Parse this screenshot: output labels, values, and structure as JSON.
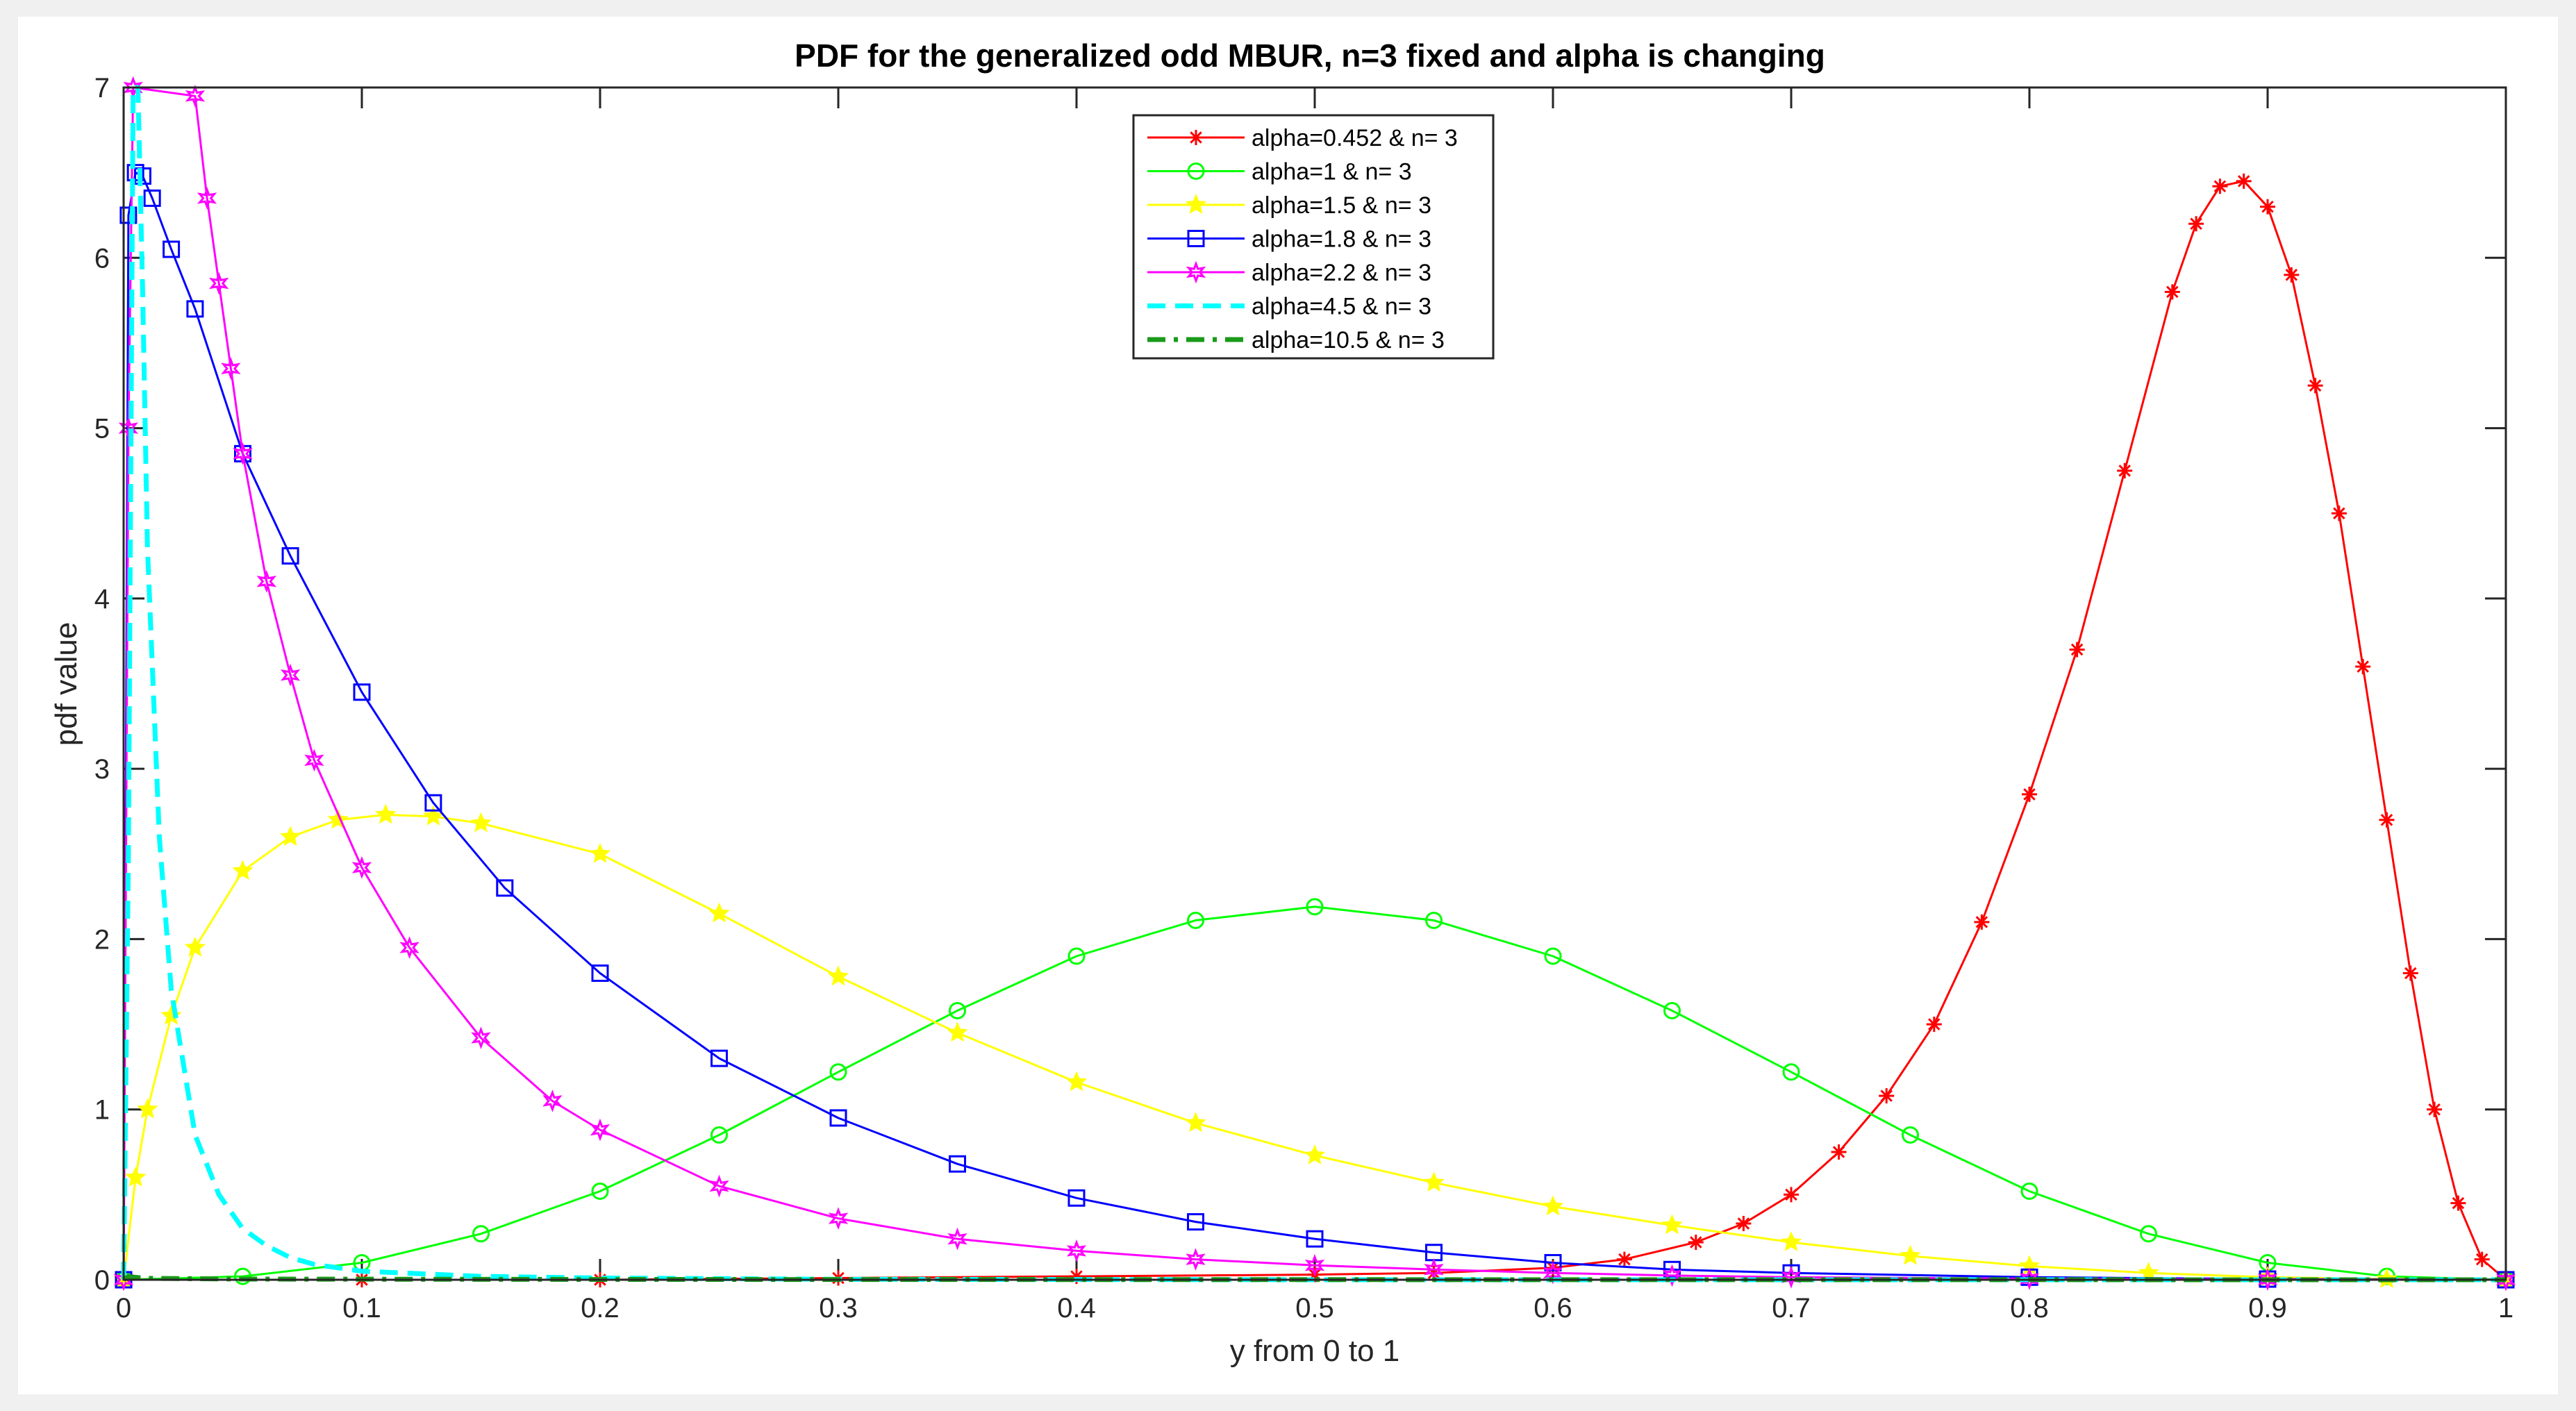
{
  "chart_data": {
    "type": "line",
    "title": "PDF for the generalized odd MBUR, n=3 fixed and alpha is changing",
    "xlabel": "y from 0 to 1",
    "ylabel": "pdf value",
    "xlim": [
      0,
      1
    ],
    "ylim": [
      0,
      7
    ],
    "xticks": [
      0,
      0.1,
      0.2,
      0.3,
      0.4,
      0.5,
      0.6,
      0.7,
      0.8,
      0.9,
      1
    ],
    "xtick_labels": [
      "0",
      "0.1",
      "0.2",
      "0.3",
      "0.4",
      "0.5",
      "0.6",
      "0.7",
      "0.8",
      "0.9",
      "1"
    ],
    "yticks": [
      0,
      1,
      2,
      3,
      4,
      5,
      6,
      7
    ],
    "ytick_labels": [
      "0",
      "1",
      "2",
      "3",
      "4",
      "5",
      "6",
      "7"
    ],
    "grid": false,
    "legend_position": "top-center",
    "series": [
      {
        "name": "alpha=0.452 & n= 3",
        "color": "#ff0000",
        "marker": "asterisk",
        "line_style": "solid",
        "x": [
          0.0,
          0.1,
          0.2,
          0.3,
          0.4,
          0.5,
          0.55,
          0.6,
          0.63,
          0.66,
          0.68,
          0.7,
          0.72,
          0.74,
          0.76,
          0.78,
          0.8,
          0.82,
          0.84,
          0.86,
          0.87,
          0.88,
          0.89,
          0.9,
          0.91,
          0.92,
          0.93,
          0.94,
          0.95,
          0.96,
          0.97,
          0.98,
          0.99,
          1.0
        ],
        "y": [
          0.0,
          0.0,
          0.0,
          0.01,
          0.02,
          0.03,
          0.04,
          0.07,
          0.12,
          0.22,
          0.33,
          0.5,
          0.75,
          1.08,
          1.5,
          2.1,
          2.85,
          3.7,
          4.75,
          5.8,
          6.2,
          6.42,
          6.45,
          6.3,
          5.9,
          5.25,
          4.5,
          3.6,
          2.7,
          1.8,
          1.0,
          0.45,
          0.12,
          0.0
        ]
      },
      {
        "name": "alpha=1 & n= 3",
        "color": "#00ff00",
        "marker": "circle",
        "line_style": "solid",
        "x": [
          0.0,
          0.05,
          0.1,
          0.15,
          0.2,
          0.25,
          0.3,
          0.35,
          0.4,
          0.45,
          0.5,
          0.55,
          0.6,
          0.65,
          0.7,
          0.75,
          0.8,
          0.85,
          0.9,
          0.95,
          1.0
        ],
        "y": [
          0.0,
          0.02,
          0.1,
          0.27,
          0.52,
          0.85,
          1.22,
          1.58,
          1.9,
          2.11,
          2.19,
          2.11,
          1.9,
          1.58,
          1.22,
          0.85,
          0.52,
          0.27,
          0.1,
          0.02,
          0.0
        ]
      },
      {
        "name": "alpha=1.5 & n= 3",
        "color": "#ffff00",
        "marker": "star",
        "line_style": "solid",
        "x": [
          0.0,
          0.005,
          0.01,
          0.02,
          0.03,
          0.05,
          0.07,
          0.09,
          0.11,
          0.13,
          0.15,
          0.2,
          0.25,
          0.3,
          0.35,
          0.4,
          0.45,
          0.5,
          0.55,
          0.6,
          0.65,
          0.7,
          0.75,
          0.8,
          0.85,
          0.9,
          0.95,
          1.0
        ],
        "y": [
          0.0,
          0.6,
          1.0,
          1.55,
          1.95,
          2.4,
          2.6,
          2.7,
          2.73,
          2.72,
          2.68,
          2.5,
          2.15,
          1.78,
          1.45,
          1.16,
          0.92,
          0.73,
          0.57,
          0.43,
          0.32,
          0.22,
          0.14,
          0.08,
          0.04,
          0.015,
          0.004,
          0.0
        ]
      },
      {
        "name": "alpha=1.8 & n= 3",
        "color": "#0000ff",
        "marker": "square",
        "line_style": "solid",
        "x": [
          0.0,
          0.002,
          0.005,
          0.008,
          0.012,
          0.02,
          0.03,
          0.05,
          0.07,
          0.1,
          0.13,
          0.16,
          0.2,
          0.25,
          0.3,
          0.35,
          0.4,
          0.45,
          0.5,
          0.55,
          0.6,
          0.65,
          0.7,
          0.8,
          0.9,
          1.0
        ],
        "y": [
          0.0,
          6.25,
          6.5,
          6.48,
          6.35,
          6.05,
          5.7,
          4.85,
          4.25,
          3.45,
          2.8,
          2.3,
          1.8,
          1.3,
          0.95,
          0.68,
          0.48,
          0.34,
          0.24,
          0.16,
          0.1,
          0.06,
          0.04,
          0.015,
          0.004,
          0.0
        ]
      },
      {
        "name": "alpha=2.2 & n= 3",
        "color": "#ff00ff",
        "marker": "hexagram",
        "line_style": "solid",
        "x": [
          0.0,
          0.002,
          0.004,
          0.03,
          0.035,
          0.04,
          0.045,
          0.05,
          0.06,
          0.07,
          0.08,
          0.1,
          0.12,
          0.15,
          0.18,
          0.2,
          0.25,
          0.3,
          0.35,
          0.4,
          0.45,
          0.5,
          0.55,
          0.6,
          0.65,
          0.7,
          0.8,
          0.9,
          1.0
        ],
        "y": [
          0.0,
          5.0,
          7.0,
          6.95,
          6.35,
          5.85,
          5.35,
          4.85,
          4.1,
          3.55,
          3.05,
          2.42,
          1.95,
          1.42,
          1.05,
          0.88,
          0.55,
          0.36,
          0.24,
          0.17,
          0.12,
          0.085,
          0.06,
          0.04,
          0.025,
          0.015,
          0.006,
          0.002,
          0.0
        ]
      },
      {
        "name": "alpha=4.5 & n= 3",
        "color": "#00ffff",
        "marker": "none",
        "line_style": "dashed",
        "x": [
          0.0,
          0.002,
          0.004,
          0.006,
          0.008,
          0.01,
          0.015,
          0.02,
          0.03,
          0.04,
          0.05,
          0.06,
          0.07,
          0.08,
          0.1,
          0.15,
          0.2,
          0.3,
          0.5,
          1.0
        ],
        "y": [
          0.0,
          2.5,
          7.0,
          7.0,
          5.8,
          4.3,
          2.6,
          1.7,
          0.85,
          0.5,
          0.3,
          0.2,
          0.13,
          0.09,
          0.05,
          0.02,
          0.01,
          0.003,
          0.0,
          0.0
        ]
      },
      {
        "name": "alpha=10.5 & n= 3",
        "color": "#1a9a1a",
        "marker": "none",
        "line_style": "dashdot",
        "x": [
          0.0,
          0.001,
          0.002,
          0.004,
          0.01,
          0.05,
          0.2,
          0.5,
          1.0
        ],
        "y": [
          0.0,
          0.01,
          0.02,
          0.015,
          0.008,
          0.004,
          0.002,
          0.001,
          0.0
        ]
      }
    ]
  }
}
